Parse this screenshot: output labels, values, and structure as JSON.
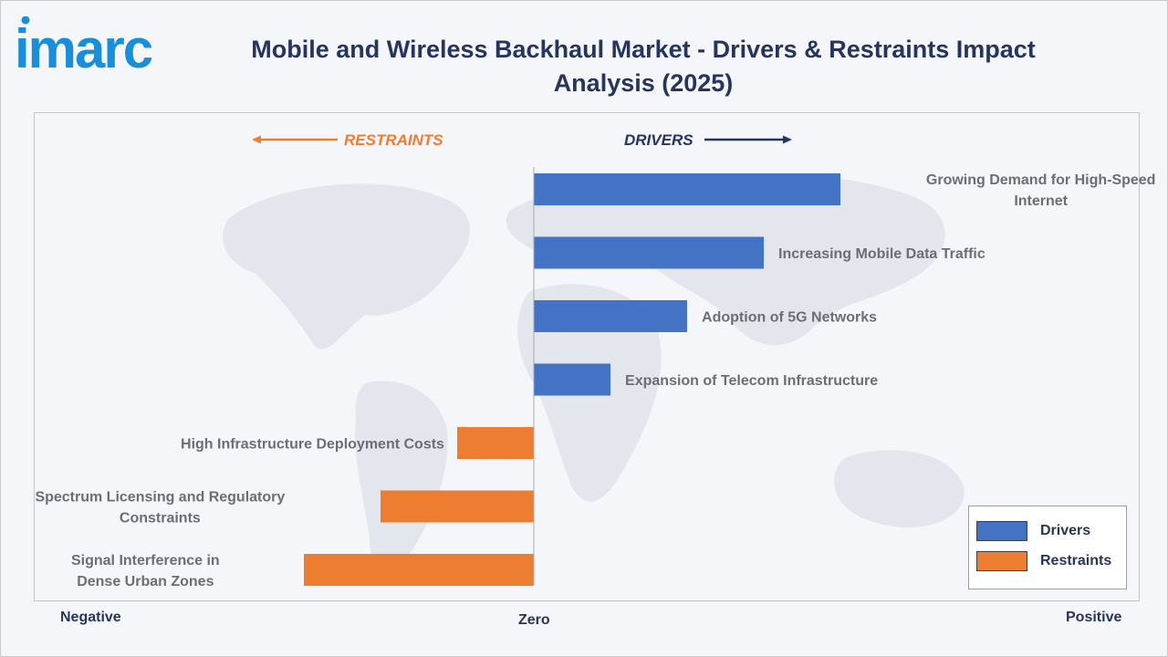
{
  "header": {
    "logo_text": "imarc",
    "title_line1": "Mobile and Wireless Backhaul Market - Drivers & Restraints Impact",
    "title_line2": "Analysis (2025)"
  },
  "direction": {
    "restraints": "RESTRAINTS",
    "drivers": "DRIVERS"
  },
  "axis": {
    "negative": "Negative",
    "zero": "Zero",
    "positive": "Positive"
  },
  "legend": {
    "drivers": "Drivers",
    "restraints": "Restraints"
  },
  "colors": {
    "drivers": "#4472c4",
    "restraints": "#ed7d31",
    "title": "#26355f",
    "logo": "#1a8fd9"
  },
  "chart_data": {
    "type": "bar",
    "orientation": "horizontal",
    "xlim": [
      -3,
      4
    ],
    "grid": false,
    "legend_position": "bottom-right",
    "series": [
      {
        "name": "Drivers",
        "categories": [
          [
            "Growing Demand for High-Speed",
            "Internet"
          ],
          [
            "Increasing Mobile Data Traffic"
          ],
          [
            "Adoption of 5G Networks"
          ],
          [
            "Expansion of Telecom Infrastructure"
          ]
        ],
        "values": [
          4,
          3,
          2,
          1
        ]
      },
      {
        "name": "Restraints",
        "categories": [
          [
            "High Infrastructure Deployment Costs"
          ],
          [
            "Spectrum Licensing and Regulatory",
            "Constraints"
          ],
          [
            "Signal Interference in",
            "Dense Urban Zones"
          ]
        ],
        "values": [
          -1,
          -2,
          -3
        ]
      }
    ]
  }
}
